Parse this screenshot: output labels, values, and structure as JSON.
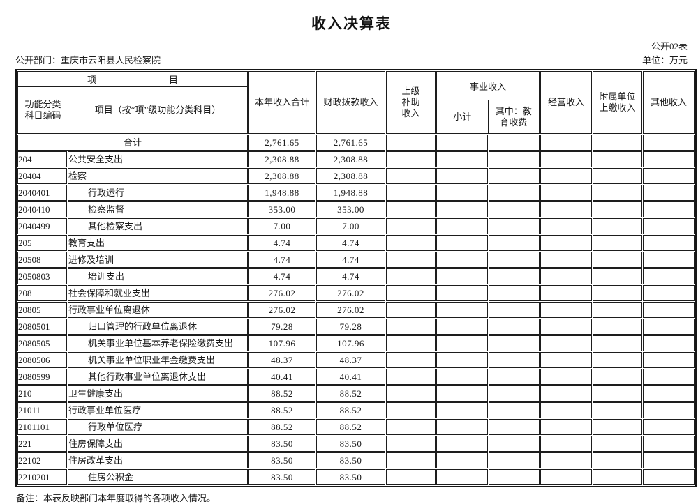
{
  "title": "收入决算表",
  "meta": {
    "table_no": "公开02表",
    "department": "公开部门：重庆市云阳县人民检察院",
    "unit": "单位：万元"
  },
  "table": {
    "header": {
      "group_project": "项　　　　　　　　目",
      "col_code": "功能分类科目编码",
      "col_project": "项目（按“项”级功能分类科目）",
      "col_total": "本年收入合计",
      "col_fiscal": "财政拨款收入",
      "col_superior": "上级补助收入",
      "group_business": "事业收入",
      "col_subtotal": "小计",
      "col_edu": "其中：教育收费",
      "col_operating": "经营收入",
      "col_affiliated": "附属单位上缴收入",
      "col_other": "其他收入"
    },
    "rows": [
      {
        "is_total": true,
        "code": "",
        "project": "合计",
        "total": "2,761.65",
        "fiscal": "2,761.65",
        "superior": "",
        "business_subtotal": "",
        "edu_fee": "",
        "operating": "",
        "affiliated": "",
        "other": ""
      },
      {
        "code": "204",
        "project": "公共安全支出",
        "indent": false,
        "total": "2,308.88",
        "fiscal": "2,308.88",
        "superior": "",
        "business_subtotal": "",
        "edu_fee": "",
        "operating": "",
        "affiliated": "",
        "other": ""
      },
      {
        "code": "20404",
        "project": "检察",
        "indent": false,
        "total": "2,308.88",
        "fiscal": "2,308.88",
        "superior": "",
        "business_subtotal": "",
        "edu_fee": "",
        "operating": "",
        "affiliated": "",
        "other": ""
      },
      {
        "code": "2040401",
        "project": "行政运行",
        "indent": true,
        "total": "1,948.88",
        "fiscal": "1,948.88",
        "superior": "",
        "business_subtotal": "",
        "edu_fee": "",
        "operating": "",
        "affiliated": "",
        "other": ""
      },
      {
        "code": "2040410",
        "project": "检察监督",
        "indent": true,
        "total": "353.00",
        "fiscal": "353.00",
        "superior": "",
        "business_subtotal": "",
        "edu_fee": "",
        "operating": "",
        "affiliated": "",
        "other": ""
      },
      {
        "code": "2040499",
        "project": "其他检察支出",
        "indent": true,
        "total": "7.00",
        "fiscal": "7.00",
        "superior": "",
        "business_subtotal": "",
        "edu_fee": "",
        "operating": "",
        "affiliated": "",
        "other": ""
      },
      {
        "code": "205",
        "project": "教育支出",
        "indent": false,
        "total": "4.74",
        "fiscal": "4.74",
        "superior": "",
        "business_subtotal": "",
        "edu_fee": "",
        "operating": "",
        "affiliated": "",
        "other": ""
      },
      {
        "code": "20508",
        "project": "进修及培训",
        "indent": false,
        "total": "4.74",
        "fiscal": "4.74",
        "superior": "",
        "business_subtotal": "",
        "edu_fee": "",
        "operating": "",
        "affiliated": "",
        "other": ""
      },
      {
        "code": "2050803",
        "project": "培训支出",
        "indent": true,
        "total": "4.74",
        "fiscal": "4.74",
        "superior": "",
        "business_subtotal": "",
        "edu_fee": "",
        "operating": "",
        "affiliated": "",
        "other": ""
      },
      {
        "code": "208",
        "project": "社会保障和就业支出",
        "indent": false,
        "total": "276.02",
        "fiscal": "276.02",
        "superior": "",
        "business_subtotal": "",
        "edu_fee": "",
        "operating": "",
        "affiliated": "",
        "other": ""
      },
      {
        "code": "20805",
        "project": "行政事业单位离退休",
        "indent": false,
        "total": "276.02",
        "fiscal": "276.02",
        "superior": "",
        "business_subtotal": "",
        "edu_fee": "",
        "operating": "",
        "affiliated": "",
        "other": ""
      },
      {
        "code": "2080501",
        "project": "归口管理的行政单位离退休",
        "indent": true,
        "total": "79.28",
        "fiscal": "79.28",
        "superior": "",
        "business_subtotal": "",
        "edu_fee": "",
        "operating": "",
        "affiliated": "",
        "other": ""
      },
      {
        "code": "2080505",
        "project": "机关事业单位基本养老保险缴费支出",
        "indent": true,
        "total": "107.96",
        "fiscal": "107.96",
        "superior": "",
        "business_subtotal": "",
        "edu_fee": "",
        "operating": "",
        "affiliated": "",
        "other": ""
      },
      {
        "code": "2080506",
        "project": "机关事业单位职业年金缴费支出",
        "indent": true,
        "total": "48.37",
        "fiscal": "48.37",
        "superior": "",
        "business_subtotal": "",
        "edu_fee": "",
        "operating": "",
        "affiliated": "",
        "other": ""
      },
      {
        "code": "2080599",
        "project": "其他行政事业单位离退休支出",
        "indent": true,
        "total": "40.41",
        "fiscal": "40.41",
        "superior": "",
        "business_subtotal": "",
        "edu_fee": "",
        "operating": "",
        "affiliated": "",
        "other": ""
      },
      {
        "code": "210",
        "project": "卫生健康支出",
        "indent": false,
        "total": "88.52",
        "fiscal": "88.52",
        "superior": "",
        "business_subtotal": "",
        "edu_fee": "",
        "operating": "",
        "affiliated": "",
        "other": ""
      },
      {
        "code": "21011",
        "project": "行政事业单位医疗",
        "indent": false,
        "total": "88.52",
        "fiscal": "88.52",
        "superior": "",
        "business_subtotal": "",
        "edu_fee": "",
        "operating": "",
        "affiliated": "",
        "other": ""
      },
      {
        "code": "2101101",
        "project": "行政单位医疗",
        "indent": true,
        "total": "88.52",
        "fiscal": "88.52",
        "superior": "",
        "business_subtotal": "",
        "edu_fee": "",
        "operating": "",
        "affiliated": "",
        "other": ""
      },
      {
        "code": "221",
        "project": "住房保障支出",
        "indent": false,
        "total": "83.50",
        "fiscal": "83.50",
        "superior": "",
        "business_subtotal": "",
        "edu_fee": "",
        "operating": "",
        "affiliated": "",
        "other": ""
      },
      {
        "code": "22102",
        "project": "住房改革支出",
        "indent": false,
        "total": "83.50",
        "fiscal": "83.50",
        "superior": "",
        "business_subtotal": "",
        "edu_fee": "",
        "operating": "",
        "affiliated": "",
        "other": ""
      },
      {
        "code": "2210201",
        "project": "住房公积金",
        "indent": true,
        "total": "83.50",
        "fiscal": "83.50",
        "superior": "",
        "business_subtotal": "",
        "edu_fee": "",
        "operating": "",
        "affiliated": "",
        "other": ""
      }
    ],
    "note": "备注：本表反映部门本年度取得的各项收入情况。"
  }
}
